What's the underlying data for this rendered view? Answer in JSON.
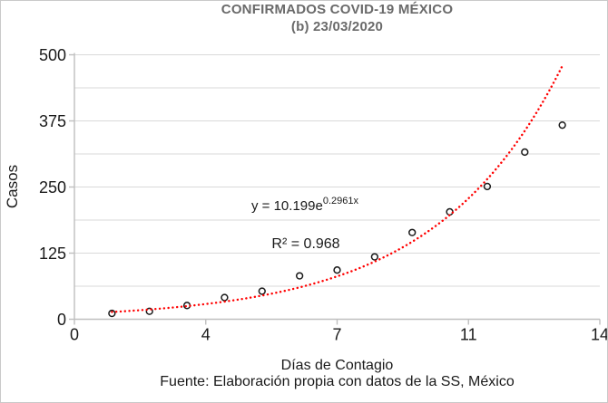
{
  "title": {
    "line1": "CONFIRMADOS COVID-19 MÉXICO",
    "line2": "(b) 23/03/2020"
  },
  "annotations": {
    "equation_prefix": "y = 10.199e",
    "equation_exponent": "0.2961x",
    "r_squared": "R² = 0.968"
  },
  "footer": "Fuente: Elaboración propia con datos de la SS, México",
  "chart_data": {
    "type": "scatter",
    "title": "CONFIRMADOS COVID-19 MÉXICO (b) 23/03/2020",
    "xlabel": "Días de Contagio",
    "ylabel": "Casos",
    "x": [
      1,
      2,
      3,
      4,
      5,
      6,
      7,
      8,
      9,
      10,
      11,
      12,
      13
    ],
    "y": [
      11,
      15,
      26,
      41,
      53,
      82,
      93,
      118,
      164,
      203,
      251,
      316,
      367
    ],
    "xlim": [
      0,
      14
    ],
    "ylim": [
      0,
      500
    ],
    "x_tick_values": [
      0,
      3.5,
      7,
      10.5,
      14
    ],
    "x_tick_labels": [
      "0",
      "4",
      "7",
      "11",
      "14"
    ],
    "y_ticks": [
      0,
      125,
      250,
      375,
      500
    ],
    "gridline_interval": 62.5,
    "grid": "horizontal-only",
    "legend": "none",
    "marker": {
      "shape": "open-circle",
      "color": "#1a1a1a"
    },
    "trendline": {
      "type": "exponential",
      "a": 10.199,
      "b": 0.2961,
      "r2": 0.968,
      "x_start": 1,
      "x_end": 13.0,
      "style": "dotted",
      "color": "#ff0000"
    },
    "colors": {
      "gridline": "#d9d9d9",
      "axis": "#bfbfbf",
      "tick_text": "#1a1a1a",
      "title_text": "#6a6a6a",
      "trend": "#ff0000",
      "marker": "#1a1a1a"
    }
  }
}
